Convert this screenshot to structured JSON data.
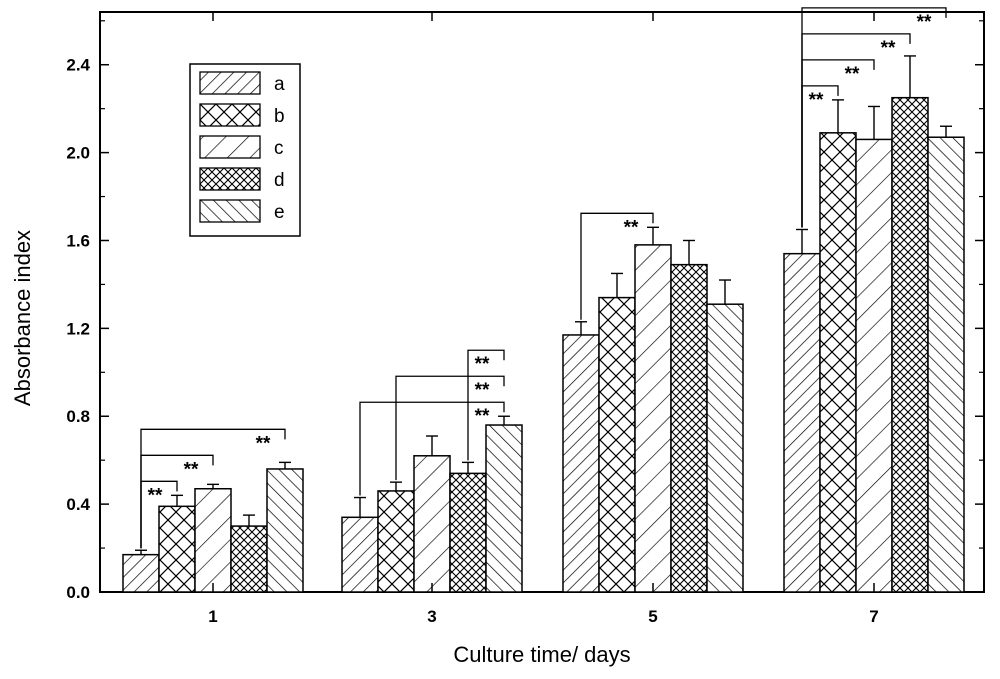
{
  "chart_data": {
    "type": "bar",
    "title": "",
    "xlabel": "Culture time/ days",
    "ylabel": "Absorbance index",
    "categories": [
      "1",
      "3",
      "5",
      "7"
    ],
    "ylim": [
      0,
      2.64
    ],
    "yticks": [
      "0.0",
      "0.4",
      "0.8",
      "1.2",
      "1.6",
      "2.0",
      "2.4"
    ],
    "grid": false,
    "legend_position": "top-left",
    "series": [
      {
        "name": "a",
        "values": [
          0.17,
          0.34,
          1.17,
          1.54
        ],
        "errors": [
          0.02,
          0.09,
          0.06,
          0.11
        ]
      },
      {
        "name": "b",
        "values": [
          0.39,
          0.46,
          1.34,
          2.09
        ],
        "errors": [
          0.05,
          0.04,
          0.11,
          0.15
        ]
      },
      {
        "name": "c",
        "values": [
          0.47,
          0.62,
          1.58,
          2.06
        ],
        "errors": [
          0.02,
          0.09,
          0.08,
          0.15
        ]
      },
      {
        "name": "d",
        "values": [
          0.3,
          0.54,
          1.49,
          2.25
        ],
        "errors": [
          0.05,
          0.05,
          0.11,
          0.19
        ]
      },
      {
        "name": "e",
        "values": [
          0.56,
          0.76,
          1.31,
          2.07
        ],
        "errors": [
          0.03,
          0.04,
          0.11,
          0.05
        ]
      }
    ],
    "significance": [
      {
        "category": "1",
        "from": "a",
        "to": "b",
        "label": "**"
      },
      {
        "category": "1",
        "from": "a",
        "to": "c",
        "label": "**"
      },
      {
        "category": "1",
        "from": "a",
        "to": "e",
        "label": "**"
      },
      {
        "category": "3",
        "from": "a",
        "to": "e",
        "label": "**"
      },
      {
        "category": "3",
        "from": "b",
        "to": "e",
        "label": "**"
      },
      {
        "category": "3",
        "from": "d",
        "to": "e",
        "label": "**"
      },
      {
        "category": "5",
        "from": "a",
        "to": "c",
        "label": "**"
      },
      {
        "category": "7",
        "from": "a",
        "to": "b",
        "label": "**"
      },
      {
        "category": "7",
        "from": "a",
        "to": "c",
        "label": "**"
      },
      {
        "category": "7",
        "from": "a",
        "to": "d",
        "label": "**"
      },
      {
        "category": "7",
        "from": "a",
        "to": "e",
        "label": "**"
      }
    ]
  }
}
